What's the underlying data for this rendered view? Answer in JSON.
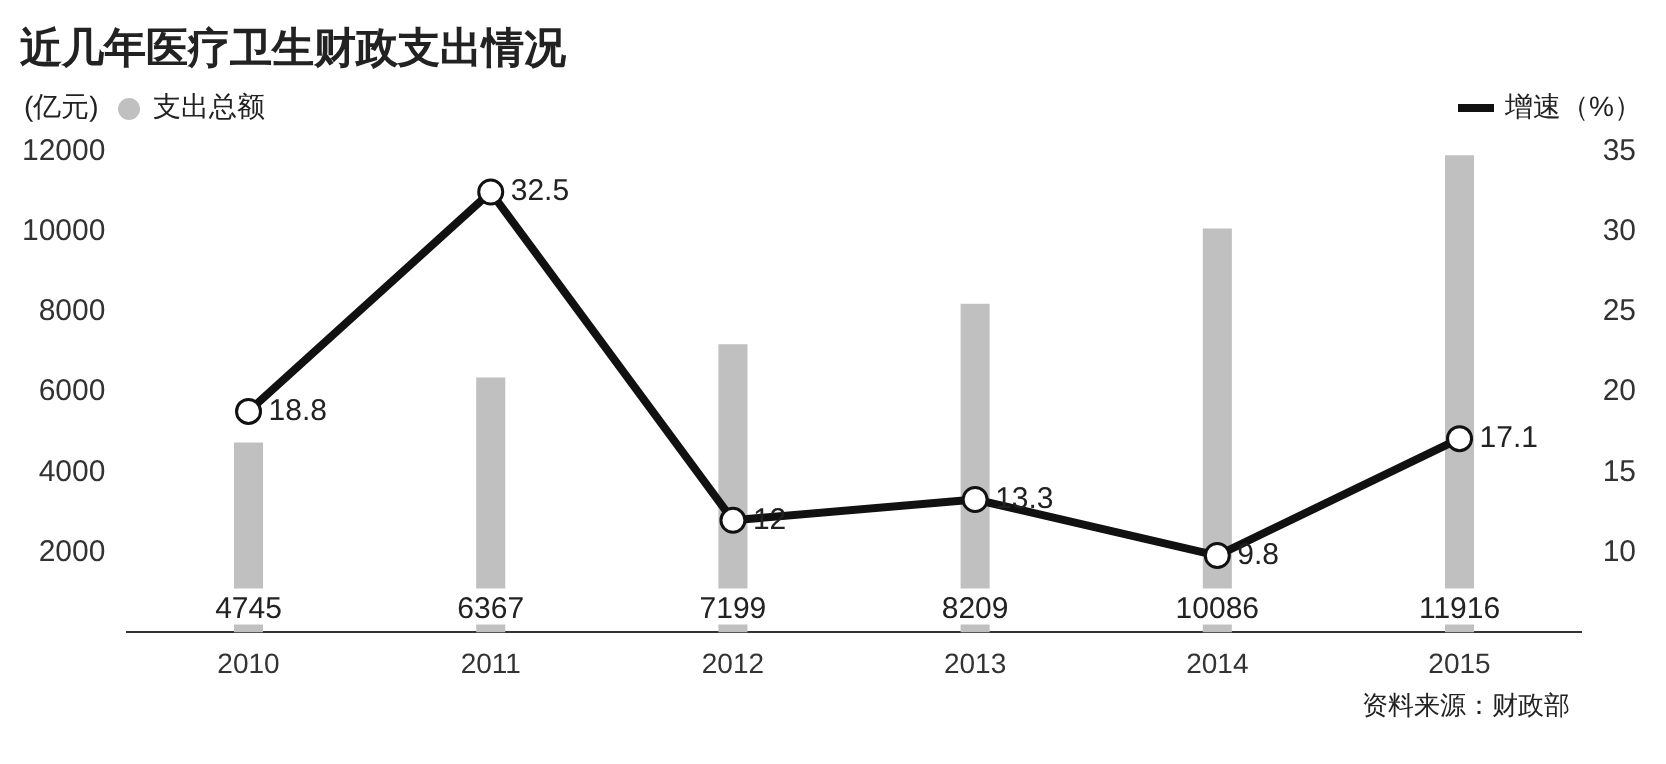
{
  "chart_data": {
    "type": "bar",
    "title": "近几年医疗卫生财政支出情况",
    "ylabel": "(亿元)",
    "categories": [
      "2010",
      "2011",
      "2012",
      "2013",
      "2014",
      "2015"
    ],
    "series": [
      {
        "name": "支出总额",
        "color": "#c0c0c0",
        "values": [
          4745,
          6367,
          7199,
          8209,
          10086,
          11916
        ]
      },
      {
        "name": "增速（%）",
        "type": "line",
        "axis": "y2",
        "color": "#111111",
        "values": [
          18.8,
          32.5,
          12,
          13.3,
          9.8,
          17.1
        ],
        "marker": "circle",
        "line_style": "solid"
      }
    ],
    "ylim": [
      0,
      12000
    ],
    "yticks": [
      2000,
      4000,
      6000,
      8000,
      10000,
      12000
    ],
    "y2lim": [
      5,
      35
    ],
    "y2ticks": [
      10,
      15,
      20,
      25,
      30,
      35
    ],
    "data_labels": true,
    "legend": "top",
    "grid": false,
    "annotations": [
      "资料来源：财政部"
    ]
  }
}
